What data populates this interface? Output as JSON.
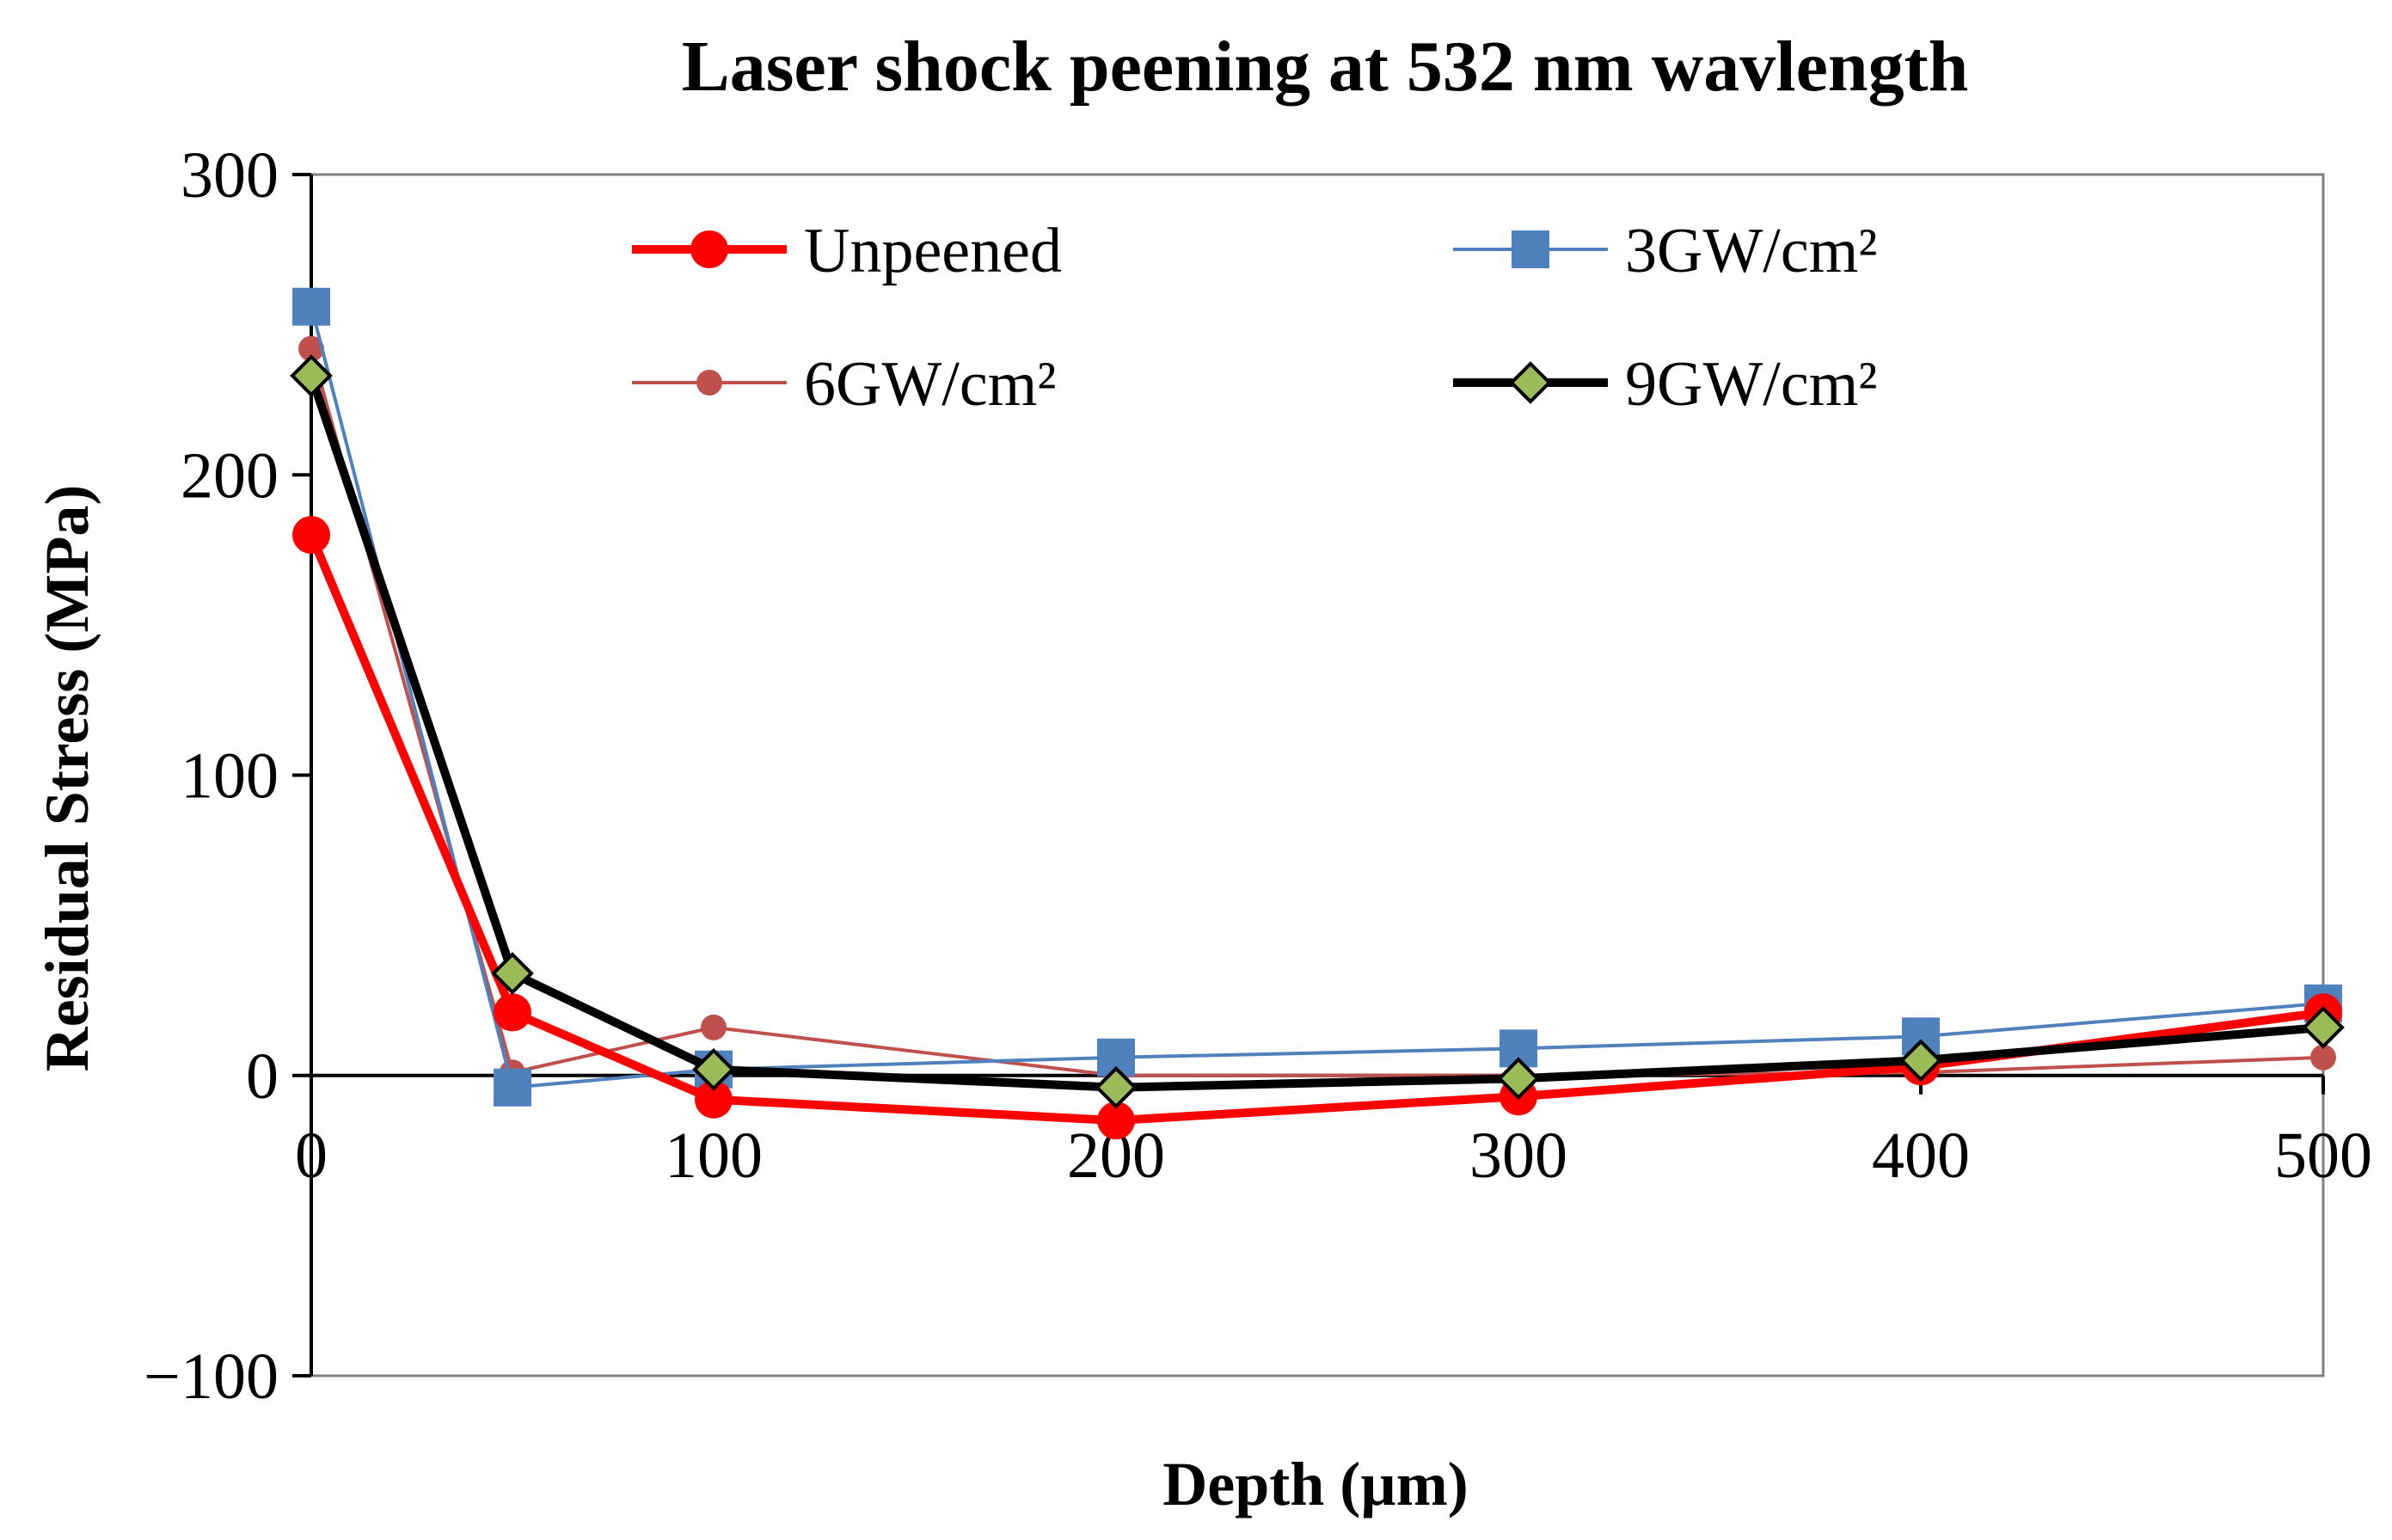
{
  "chart_data": {
    "type": "line",
    "title": "Laser shock peening at 532 nm wavlength",
    "xlabel": "Depth (µm)",
    "ylabel": "Residual Stress (MPa)",
    "xlim": [
      0,
      500
    ],
    "ylim": [
      -100,
      300
    ],
    "x_ticks": [
      "0",
      "100",
      "200",
      "300",
      "400",
      "500"
    ],
    "x_tick_values": [
      0,
      100,
      200,
      300,
      400,
      500
    ],
    "y_ticks": [
      "300",
      "200",
      "100",
      "0",
      "−100"
    ],
    "y_tick_values": [
      300,
      200,
      100,
      0,
      -100
    ],
    "grid": false,
    "legend_position": "top-inside",
    "series": [
      {
        "name": "Unpeened",
        "color": "#ff0000",
        "marker": "circle",
        "line_weight": "thick",
        "x": [
          0,
          50,
          100,
          200,
          300,
          400,
          500
        ],
        "values": [
          180,
          21,
          -8,
          -15,
          -7,
          3,
          21
        ]
      },
      {
        "name": "3GW/cm²",
        "color": "#4f81bd",
        "marker": "square",
        "line_weight": "thin",
        "x": [
          0,
          50,
          100,
          200,
          300,
          400,
          500
        ],
        "values": [
          256,
          -4,
          2,
          6,
          9,
          13,
          24
        ]
      },
      {
        "name": "6GW/cm²",
        "color": "#c0504d",
        "marker": "small-circle",
        "line_weight": "thin",
        "x": [
          0,
          50,
          100,
          200,
          300,
          400,
          500
        ],
        "values": [
          242,
          1,
          16,
          0,
          0,
          1,
          6
        ]
      },
      {
        "name": "9GW/cm²",
        "color": "#000000",
        "marker_fill": "#9bbb59",
        "marker": "diamond",
        "line_weight": "thick",
        "x": [
          0,
          50,
          100,
          200,
          300,
          400,
          500
        ],
        "values": [
          233,
          34,
          2,
          -4,
          -1,
          5,
          16
        ]
      }
    ]
  }
}
